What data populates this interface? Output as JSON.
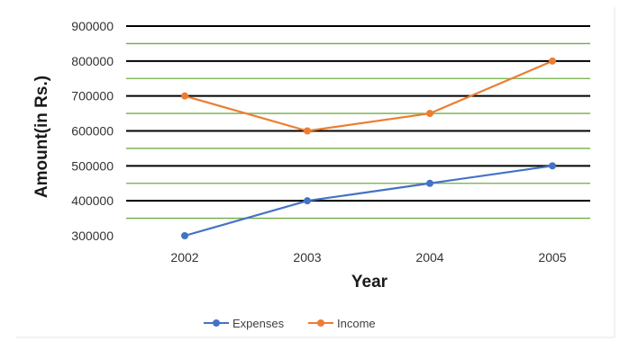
{
  "chart_data": {
    "type": "line",
    "categories": [
      "2002",
      "2003",
      "2004",
      "2005"
    ],
    "series": [
      {
        "name": "Expenses",
        "values": [
          300000,
          400000,
          450000,
          500000
        ],
        "color": "#4472c4"
      },
      {
        "name": "Income",
        "values": [
          700000,
          600000,
          650000,
          800000
        ],
        "color": "#ed7d31"
      }
    ],
    "title": "",
    "xlabel": "Year",
    "ylabel": "Amount(in Rs.)",
    "ylim": [
      300000,
      900000
    ],
    "yticks": [
      "900000",
      "800000",
      "700000",
      "600000",
      "500000",
      "400000",
      "300000"
    ],
    "grid": true,
    "major_grid_color": "#000000",
    "minor_grid_color": "#70ad47",
    "legend_position": "bottom"
  }
}
